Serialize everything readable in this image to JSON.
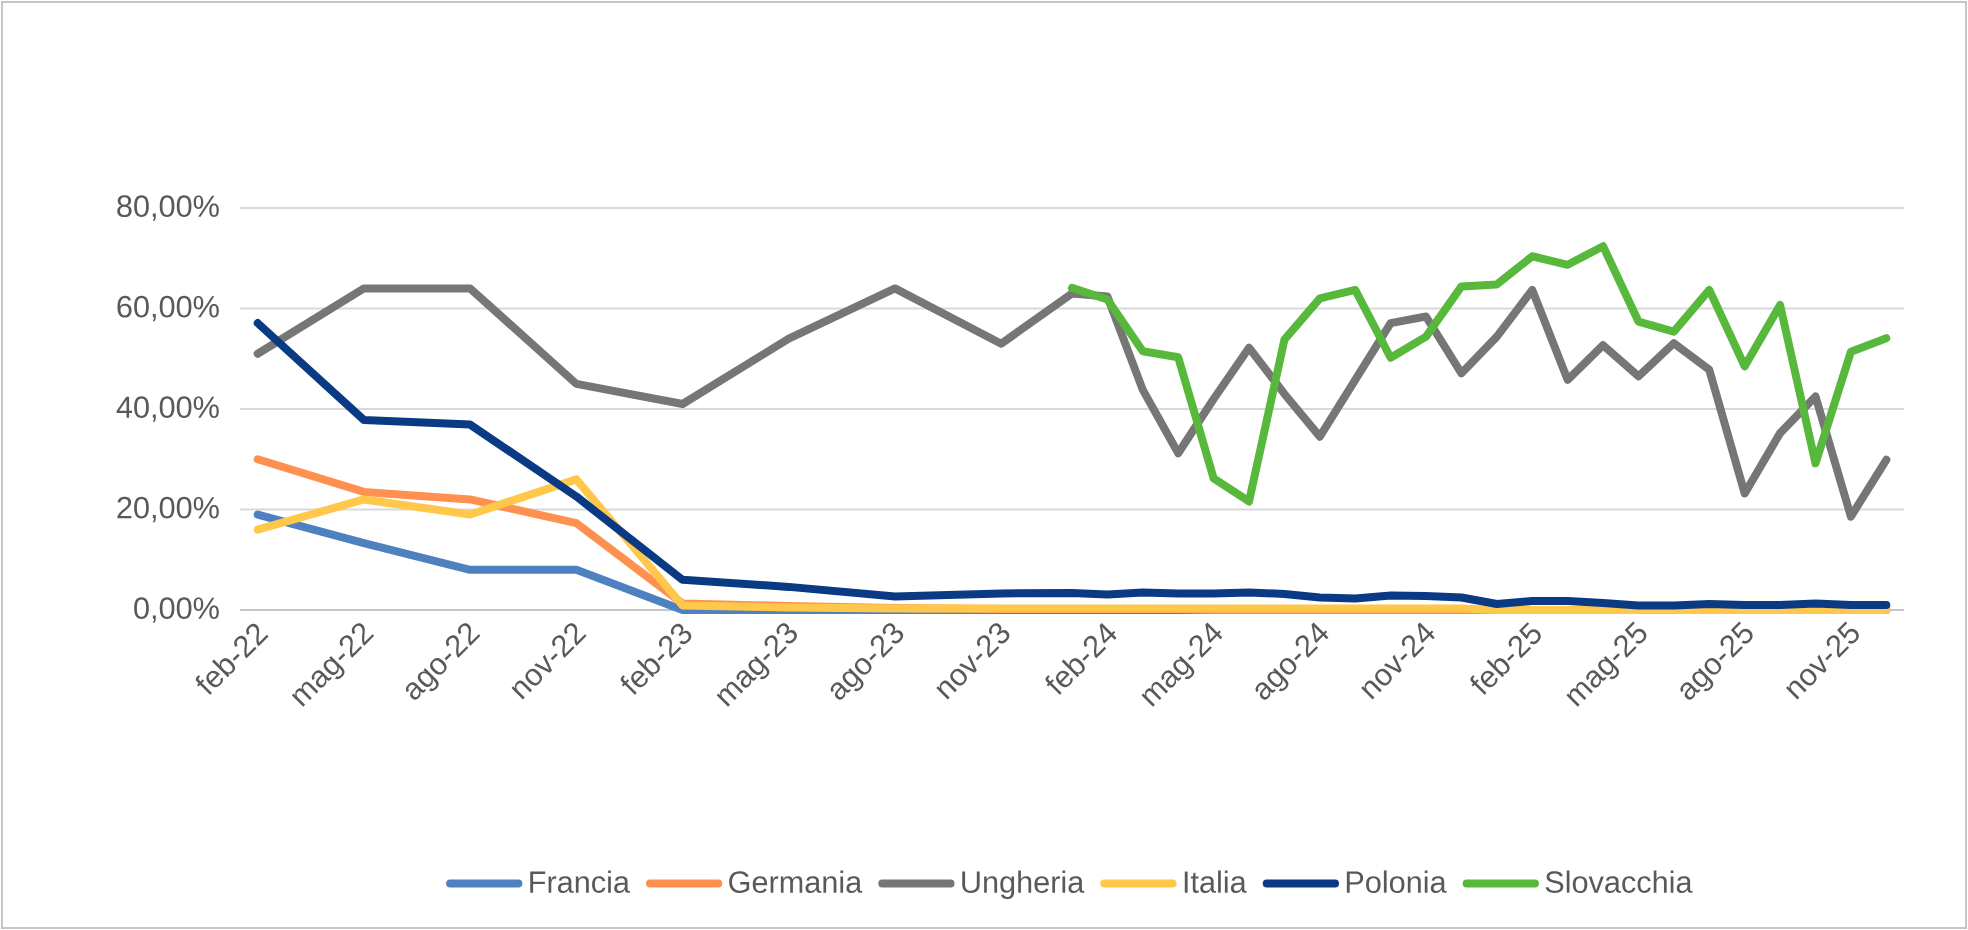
{
  "chart_data": {
    "type": "line",
    "x": [
      "2022-02",
      "2022-05",
      "2022-08",
      "2022-11",
      "2023-02",
      "2023-05",
      "2023-08",
      "2023-11",
      "2024-01",
      "2024-02",
      "2024-03",
      "2024-04",
      "2024-05",
      "2024-06",
      "2024-07",
      "2024-08",
      "2024-09",
      "2024-10",
      "2024-11",
      "2024-12",
      "2025-01",
      "2025-02",
      "2025-03",
      "2025-04",
      "2025-05",
      "2025-06",
      "2025-07",
      "2025-08",
      "2025-09",
      "2025-10",
      "2025-11",
      "2025-12"
    ],
    "series": [
      {
        "name": "Francia",
        "color": "#4f81c1",
        "values": [
          19,
          13.3,
          8,
          8,
          0,
          0,
          0,
          0,
          0,
          0,
          0,
          0,
          0,
          0,
          0,
          0,
          0,
          0,
          0,
          0,
          0,
          0,
          0,
          0,
          0,
          0,
          0,
          0,
          0,
          0,
          0,
          0
        ]
      },
      {
        "name": "Germania",
        "color": "#ff9150",
        "values": [
          30,
          23.5,
          22,
          17.3,
          1.3,
          0.8,
          0.4,
          0.2,
          0.2,
          0.2,
          0.2,
          0.2,
          0,
          0,
          0,
          0,
          0,
          0,
          0,
          0,
          0,
          0,
          0,
          0,
          0,
          0,
          0,
          0,
          0,
          0,
          0,
          0
        ]
      },
      {
        "name": "Ungheria",
        "color": "#767676",
        "values": [
          51,
          64,
          64,
          45,
          41,
          54,
          64,
          53,
          63,
          62.4,
          43.8,
          31.2,
          42,
          52.2,
          43,
          34.5,
          45.8,
          57.1,
          58.4,
          47.1,
          54.4,
          63.7,
          45.8,
          52.7,
          46.5,
          53.1,
          47.8,
          23.2,
          35.2,
          42.5,
          18.6,
          29.9
        ]
      },
      {
        "name": "Italia",
        "color": "#ffc84a",
        "values": [
          16,
          22,
          19,
          26,
          0.9,
          0.5,
          0.3,
          0.3,
          0.3,
          0.3,
          0.3,
          0.3,
          0.3,
          0.3,
          0.3,
          0.3,
          0.3,
          0.3,
          0.3,
          0.3,
          0,
          0,
          0,
          0,
          0,
          0,
          0,
          0,
          0,
          0,
          0,
          0
        ]
      },
      {
        "name": "Polonia",
        "color": "#0a3a84",
        "values": [
          57.1,
          37.8,
          36.9,
          22.6,
          6.0,
          4.6,
          2.7,
          3.3,
          3.4,
          3.1,
          3.5,
          3.3,
          3.3,
          3.5,
          3.2,
          2.5,
          2.3,
          2.9,
          2.8,
          2.5,
          1.2,
          1.8,
          1.8,
          1.4,
          0.9,
          0.9,
          1.2,
          1.0,
          1.0,
          1.3,
          1.0,
          1.0
        ]
      },
      {
        "name": "Slovacchia",
        "color": "#58b83c",
        "values": [
          null,
          null,
          null,
          null,
          null,
          null,
          null,
          null,
          64.1,
          61.8,
          51.5,
          50.3,
          26.2,
          21.6,
          53.8,
          62,
          63.7,
          50.2,
          54.4,
          64.4,
          64.8,
          70.4,
          68.7,
          72.4,
          57.4,
          55.4,
          63.7,
          48.5,
          60.7,
          29.2,
          51.4,
          54.1
        ]
      }
    ],
    "xlim": [
      "2022-01-16",
      "2025-12-16"
    ],
    "xticks": [
      {
        "value": "2022-02",
        "label": "feb-22"
      },
      {
        "value": "2022-05",
        "label": "mag-22"
      },
      {
        "value": "2022-08",
        "label": "ago-22"
      },
      {
        "value": "2022-11",
        "label": "nov-22"
      },
      {
        "value": "2023-02",
        "label": "feb-23"
      },
      {
        "value": "2023-05",
        "label": "mag-23"
      },
      {
        "value": "2023-08",
        "label": "ago-23"
      },
      {
        "value": "2023-11",
        "label": "nov-23"
      },
      {
        "value": "2024-02",
        "label": "feb-24"
      },
      {
        "value": "2024-05",
        "label": "mag-24"
      },
      {
        "value": "2024-08",
        "label": "ago-24"
      },
      {
        "value": "2024-11",
        "label": "nov-24"
      },
      {
        "value": "2025-02",
        "label": "feb-25"
      },
      {
        "value": "2025-05",
        "label": "mag-25"
      },
      {
        "value": "2025-08",
        "label": "ago-25"
      },
      {
        "value": "2025-11",
        "label": "nov-25"
      }
    ],
    "ylim": [
      0,
      80
    ],
    "yticks": [
      {
        "value": 0,
        "label": "0,00%"
      },
      {
        "value": 20,
        "label": "20,00%"
      },
      {
        "value": 40,
        "label": "40,00%"
      },
      {
        "value": 60,
        "label": "60,00%"
      },
      {
        "value": 80,
        "label": "80,00%"
      }
    ],
    "grid": "y",
    "legend": "bottom",
    "marker": "none",
    "line_style": "solid"
  }
}
